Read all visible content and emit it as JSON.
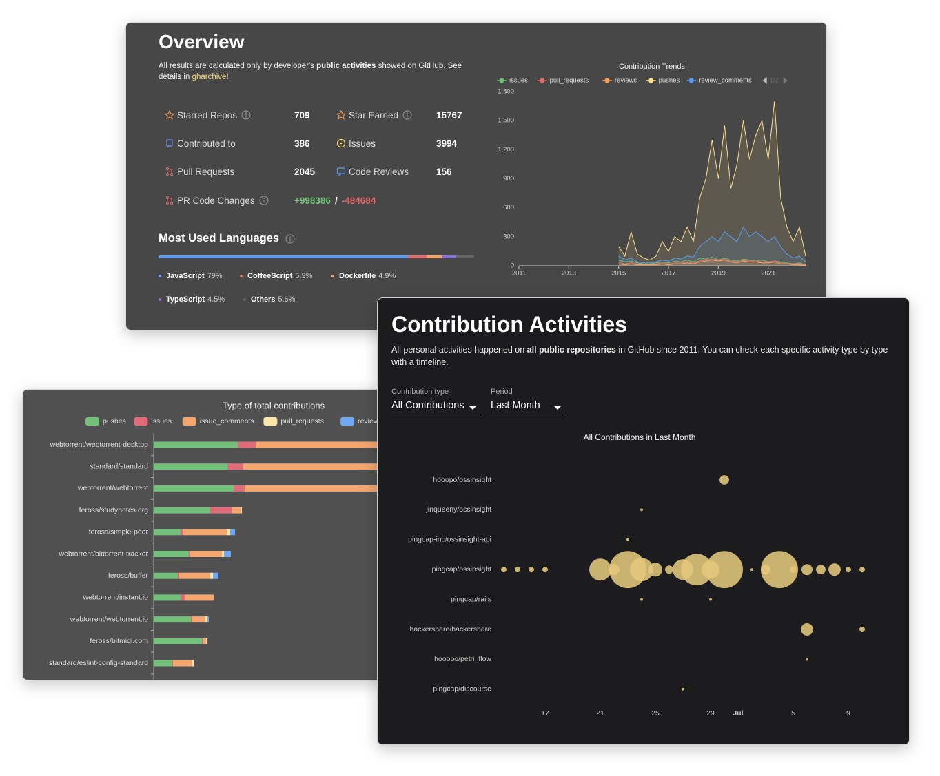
{
  "overview": {
    "title": "Overview",
    "description": [
      "All results are calculated only by developer's ",
      "public activities",
      " showed on GitHub. See details in ",
      "gharchive",
      "!"
    ],
    "stats": [
      {
        "label": "Starred Repos",
        "value": 709
      },
      {
        "label": "Star Earned",
        "value": 15767
      },
      {
        "label": "Contributed to",
        "value": 386
      },
      {
        "label": "Issues",
        "value": 3994
      },
      {
        "label": "Pull Requests",
        "value": 2045
      },
      {
        "label": "Code Reviews",
        "value": 156
      }
    ],
    "code_changes": {
      "label": "PR Code Changes",
      "additions": "+998386",
      "separator": "/",
      "deletions": "-484684"
    },
    "languages": {
      "title": "Most Used Languages",
      "items": [
        {
          "name": "JavaScript",
          "value": 79,
          "value_label": "79%",
          "color": "#5b9cf2"
        },
        {
          "name": "CoffeeScript",
          "value": 5.9,
          "value_label": "5.9%",
          "color": "#e06c6c"
        },
        {
          "name": "Dockerfile",
          "value": 4.9,
          "value_label": "4.9%",
          "color": "#f4a361"
        },
        {
          "name": "TypeScript",
          "value": 4.5,
          "value_label": "4.5%",
          "color": "#8a6fd6"
        },
        {
          "name": "Others",
          "value": 5.6,
          "value_label": "5.6%",
          "color": "#666666"
        }
      ]
    }
  },
  "activities": {
    "title": "Contribution Activities",
    "description": [
      "All personal activities happened on ",
      "all public repositories",
      " in GitHub since 2011. You can check each specific activity type by type with a timeline."
    ],
    "selects": [
      {
        "label": "Contribution type",
        "value": "All Contributions"
      },
      {
        "label": "Period",
        "value": "Last Month"
      }
    ]
  },
  "chart_data": [
    {
      "type": "line",
      "title": "Contribution Trends",
      "legend_page": "1/2",
      "x": [
        2015,
        2015.25,
        2015.5,
        2015.75,
        2016,
        2016.25,
        2016.5,
        2016.75,
        2017,
        2017.25,
        2017.5,
        2017.75,
        2018,
        2018.25,
        2018.5,
        2018.75,
        2019,
        2019.25,
        2019.5,
        2019.75,
        2020,
        2020.25,
        2020.5,
        2020.75,
        2021,
        2021.25,
        2021.5,
        2021.75,
        2022,
        2022.25,
        2022.5
      ],
      "xlim": [
        2011,
        2022.5
      ],
      "xticks": [
        2011,
        2013,
        2015,
        2017,
        2019,
        2021
      ],
      "ylim": [
        0,
        1800
      ],
      "yticks": [
        0,
        300,
        600,
        900,
        {
          "value": 1200,
          "label": "1,200"
        },
        {
          "value": 1500,
          "label": "1,500"
        },
        {
          "value": 1800,
          "label": "1,800"
        }
      ],
      "series": [
        {
          "name": "issues",
          "color": "#72c07a",
          "values": [
            60,
            40,
            50,
            30,
            20,
            20,
            30,
            40,
            30,
            50,
            40,
            60,
            40,
            80,
            70,
            90,
            60,
            80,
            60,
            50,
            70,
            60,
            50,
            60,
            40,
            50,
            40,
            30,
            20,
            30,
            10
          ]
        },
        {
          "name": "pull_requests",
          "color": "#e06c6c",
          "values": [
            30,
            20,
            30,
            20,
            10,
            10,
            20,
            30,
            20,
            30,
            30,
            40,
            30,
            50,
            60,
            70,
            60,
            70,
            50,
            40,
            60,
            50,
            50,
            40,
            40,
            50,
            30,
            20,
            20,
            20,
            10
          ]
        },
        {
          "name": "reviews",
          "color": "#f4a361",
          "values": [
            20,
            10,
            20,
            10,
            10,
            10,
            10,
            20,
            10,
            20,
            20,
            30,
            20,
            40,
            50,
            60,
            50,
            60,
            40,
            30,
            50,
            40,
            40,
            30,
            30,
            40,
            20,
            20,
            10,
            10,
            5
          ]
        },
        {
          "name": "pushes",
          "color": "#fde18c",
          "values": [
            200,
            100,
            350,
            120,
            80,
            60,
            100,
            250,
            150,
            300,
            250,
            400,
            250,
            700,
            900,
            1300,
            900,
            1450,
            800,
            1050,
            1500,
            1100,
            1350,
            1500,
            1100,
            1700,
            700,
            400,
            250,
            400,
            100
          ]
        },
        {
          "name": "review_comments",
          "color": "#5b9cf2",
          "values": [
            100,
            60,
            80,
            40,
            30,
            30,
            40,
            60,
            50,
            80,
            70,
            100,
            90,
            200,
            250,
            300,
            250,
            350,
            300,
            250,
            400,
            300,
            350,
            300,
            250,
            300,
            200,
            120,
            80,
            100,
            40
          ]
        }
      ]
    },
    {
      "type": "stacked-hbar",
      "title": "Type of total contributions",
      "categories": [
        "webtorrent/webtorrent-desktop",
        "standard/standard",
        "webtorrent/webtorrent",
        "feross/studynotes.org",
        "feross/simple-peer",
        "webtorrent/bittorrent-tracker",
        "feross/buffer",
        "webtorrent/instant.io",
        "webtorrent/webtorrent.io",
        "feross/bitmidi.com",
        "standard/eslint-config-standard"
      ],
      "xlim": [
        0,
        1400
      ],
      "series": [
        {
          "name": "pushes",
          "color": "#72c07a",
          "values": [
            244,
            214,
            232,
            164,
            78,
            102,
            70,
            78,
            108,
            140,
            54
          ]
        },
        {
          "name": "issues",
          "color": "#e06c7a",
          "values": [
            52,
            46,
            32,
            62,
            8,
            4,
            4,
            12,
            2,
            2,
            2
          ]
        },
        {
          "name": "issue_comments",
          "color": "#f4a66e",
          "values": [
            660,
            600,
            560,
            26,
            126,
            92,
            90,
            84,
            38,
            10,
            56
          ]
        },
        {
          "name": "pull_requests",
          "color": "#fde5a8",
          "values": [
            20,
            16,
            14,
            4,
            10,
            6,
            8,
            0,
            8,
            2,
            4
          ]
        },
        {
          "name": "reviews",
          "color": "#6ea8f4",
          "values": [
            10,
            8,
            10,
            0,
            14,
            20,
            16,
            0,
            4,
            0,
            0
          ]
        }
      ]
    },
    {
      "type": "bubble",
      "title": "All Contributions in Last Month",
      "color": "#e3c77c",
      "xlim": [
        "06-13",
        "07-11"
      ],
      "xticks": [
        {
          "value": "06-17",
          "label": "17"
        },
        {
          "value": "06-21",
          "label": "21"
        },
        {
          "value": "06-25",
          "label": "25"
        },
        {
          "value": "06-29",
          "label": "29"
        },
        {
          "value": "07-01",
          "label": "Jul"
        },
        {
          "value": "07-05",
          "label": "5"
        },
        {
          "value": "07-09",
          "label": "9"
        }
      ],
      "rows": [
        {
          "name": "hooopo/ossinsight",
          "x": [
            "06-30"
          ],
          "sizes": [
            12
          ]
        },
        {
          "name": "jinqueeny/ossinsight",
          "x": [
            "06-24"
          ],
          "sizes": [
            1
          ]
        },
        {
          "name": "pingcap-inc/ossinsight-api",
          "x": [
            "06-23"
          ],
          "sizes": [
            1
          ]
        },
        {
          "name": "pingcap/ossinsight",
          "x": [
            "06-14",
            "06-15",
            "06-16",
            "06-17",
            "06-21",
            "06-22",
            "06-23",
            "06-24",
            "06-25",
            "06-26",
            "06-27",
            "06-28",
            "06-29",
            "06-30",
            "07-02",
            "07-03",
            "07-04",
            "07-05",
            "07-06",
            "07-07",
            "07-08",
            "07-09",
            "07-10"
          ],
          "sizes": [
            4,
            4,
            4,
            4,
            64,
            16,
            182,
            72,
            25,
            9,
            56,
            132,
            42,
            182,
            1,
            12,
            182,
            6,
            16,
            12,
            20,
            4,
            4
          ]
        },
        {
          "name": "pingcap/rails",
          "x": [
            "06-24",
            "06-29"
          ],
          "sizes": [
            1,
            1
          ]
        },
        {
          "name": "hackershare/hackershare",
          "x": [
            "07-06",
            "07-10"
          ],
          "sizes": [
            20,
            4
          ]
        },
        {
          "name": "hooopo/petri_flow",
          "x": [
            "07-06"
          ],
          "sizes": [
            1
          ]
        },
        {
          "name": "pingcap/discourse",
          "x": [
            "06-27"
          ],
          "sizes": [
            1
          ]
        }
      ]
    }
  ]
}
